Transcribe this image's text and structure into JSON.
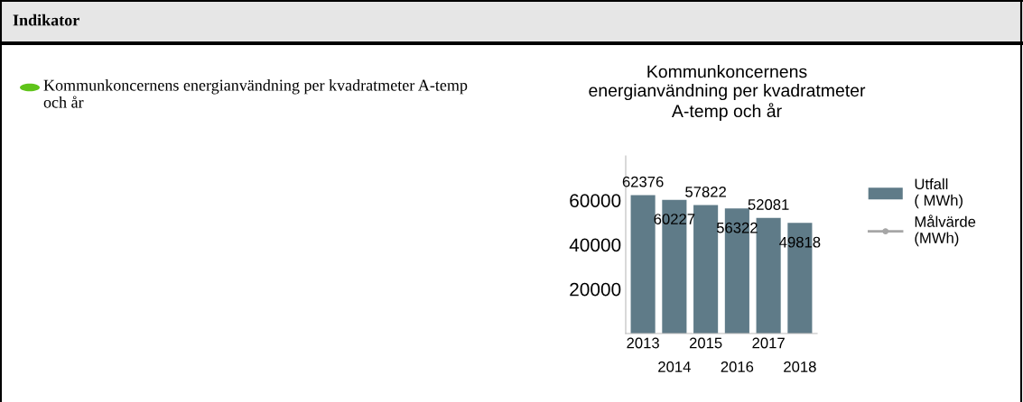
{
  "chart_data": {
    "type": "bar",
    "title": "Kommunkoncernens energianvändning per kvadratmeter A-temp och år",
    "annotations": [
      "Indikator",
      "Kommunkoncernens energianvändning per kvadratmeter A-temp och år"
    ],
    "categories": [
      "2013",
      "2014",
      "2015",
      "2016",
      "2017",
      "2018"
    ],
    "series": [
      {
        "name": "Utfall ( MWh)",
        "color": "#5f7b88",
        "values": [
          62376,
          60227,
          57822,
          56322,
          52081,
          49818
        ]
      },
      {
        "name": "Målvärde (MWh)",
        "type": "line",
        "color": "#a6a6a6",
        "marker": "circle",
        "values": [
          null,
          null,
          null,
          null,
          null,
          null
        ]
      }
    ],
    "ylim": [
      0,
      80000
    ],
    "yticks": [
      20000,
      40000,
      60000
    ],
    "data_labels": true,
    "legend": "right",
    "grid": false
  }
}
